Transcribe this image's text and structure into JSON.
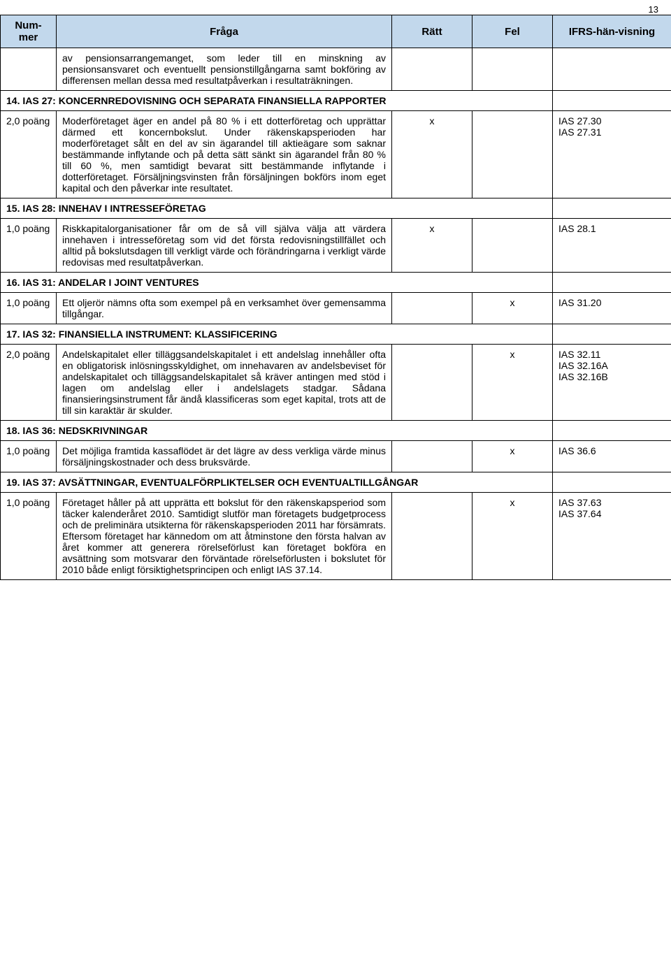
{
  "page_number": "13",
  "header": {
    "nummer": "Num-mer",
    "fraga": "Fråga",
    "ratt": "Rätt",
    "fel": "Fel",
    "ifrs": "IFRS-hän-visning"
  },
  "intro_text": "av pensionsarrangemanget, som leder till en minskning av pensionsansvaret och eventuellt pensionstillgångarna samt bokföring av differensen mellan dessa med resultatpåverkan i resultaträkningen.",
  "sections": [
    {
      "heading": "14. IAS 27: KONCERNREDOVISNING OCH SEPARATA FINANSIELLA RAPPORTER",
      "poang": "2,0 poäng",
      "text": "Moderföretaget äger en andel på 80 % i ett dotterföretag och upprättar därmed ett koncernbokslut. Under räkenskapsperioden har moderföretaget sålt en del av sin ägarandel till aktieägare som saknar bestämmande inflytande och på detta sätt sänkt sin ägarandel från 80 % till 60 %, men samtidigt bevarat sitt bestämmande inflytande i dotterföretaget. Försäljningsvinsten från försäljningen bokförs inom eget kapital och den påverkar inte resultatet.",
      "ratt": "x",
      "fel": "",
      "ifrs": "IAS 27.30\nIAS 27.31"
    },
    {
      "heading": "15. IAS 28: INNEHAV I INTRESSEFÖRETAG",
      "poang": "1,0 poäng",
      "text": "Riskkapitalorganisationer får om de så vill själva välja att värdera innehaven i intresseföretag som vid det första redovisningstillfället och alltid på bokslutsdagen till verkligt värde och förändringarna i verkligt värde redovisas med resultatpåverkan.",
      "ratt": "x",
      "fel": "",
      "ifrs": "IAS 28.1"
    },
    {
      "heading": "16. IAS 31: ANDELAR I JOINT VENTURES",
      "poang": "1,0 poäng",
      "text": "Ett oljerör nämns ofta som exempel på en verksamhet över gemensamma tillgångar.",
      "ratt": "",
      "fel": "x",
      "ifrs": "IAS 31.20"
    },
    {
      "heading": "17. IAS 32: FINANSIELLA INSTRUMENT: KLASSIFICERING",
      "poang": "2,0 poäng",
      "text": "Andelskapitalet eller tilläggsandelskapitalet i ett andelslag innehåller ofta en obligatorisk inlösningsskyldighet, om innehavaren av andelsbeviset för andelskapitalet och tilläggsandelskapitalet så kräver antingen med stöd i lagen om andelslag eller i andelslagets stadgar. Sådana finansieringsinstrument får ändå klassificeras som eget kapital, trots att de till sin karaktär är skulder.",
      "ratt": "",
      "fel": "x",
      "ifrs": "IAS 32.11\nIAS 32.16A\nIAS 32.16B"
    },
    {
      "heading": "18. IAS 36: NEDSKRIVNINGAR",
      "poang": "1,0 poäng",
      "text": "Det möjliga framtida kassaflödet är det lägre av dess verkliga värde minus försäljningskostnader och dess bruksvärde.",
      "ratt": "",
      "fel": "x",
      "ifrs": "IAS 36.6"
    },
    {
      "heading": "19. IAS 37: AVSÄTTNINGAR, EVENTUALFÖRPLIKTELSER OCH EVENTUALTILLGÅNGAR",
      "poang": "1,0 poäng",
      "text": "Företaget håller på att upprätta ett bokslut för den räkenskapsperiod som täcker kalenderåret 2010. Samtidigt slutför man företagets budgetprocess och de preliminära utsikterna för räkenskapsperioden 2011 har försämrats. Eftersom företaget har kännedom om att åtminstone den första halvan av året kommer att generera rörelseförlust kan företaget bokföra en avsättning som motsvarar den förväntade rörelseförlusten i bokslutet för 2010 både enligt försiktighetsprincipen och enligt IAS 37.14.",
      "ratt": "",
      "fel": "x",
      "ifrs": "IAS 37.63\nIAS 37.64"
    }
  ]
}
